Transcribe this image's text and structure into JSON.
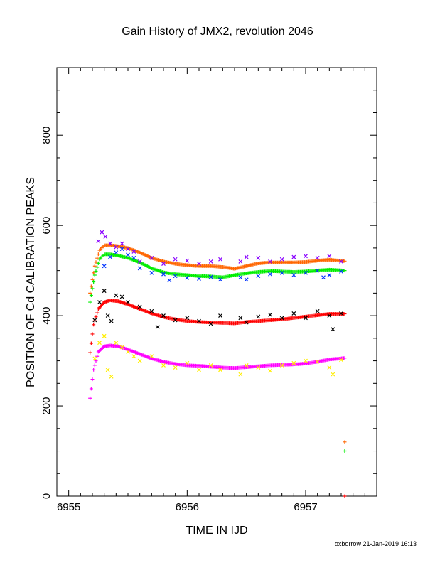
{
  "chart_data": {
    "type": "scatter",
    "title": "Gain History of JMX2, revolution 2046",
    "xlabel": "TIME IN IJD",
    "ylabel": "POSITION OF Cd CALIBRATION PEAKS",
    "xlim": [
      6954.9,
      6957.6
    ],
    "ylim": [
      0,
      950
    ],
    "x_ticks": [
      6955,
      6956,
      6957
    ],
    "y_ticks": [
      0,
      200,
      400,
      600,
      800
    ],
    "grid": false,
    "series": [
      {
        "color": "#ff6600",
        "marker": "plus",
        "role": "smooth",
        "x": [
          6955.18,
          6955.22,
          6955.26,
          6955.3,
          6955.35,
          6955.42,
          6955.5,
          6955.6,
          6955.7,
          6955.8,
          6955.9,
          6956.0,
          6956.1,
          6956.2,
          6956.3,
          6956.4,
          6956.5,
          6956.6,
          6956.7,
          6956.8,
          6956.9,
          6957.0,
          6957.1,
          6957.2,
          6957.33
        ],
        "y": [
          450,
          510,
          545,
          556,
          556,
          554,
          550,
          540,
          528,
          520,
          515,
          512,
          510,
          510,
          508,
          504,
          510,
          516,
          518,
          518,
          518,
          519,
          522,
          524,
          521
        ]
      },
      {
        "color": "#00ee00",
        "marker": "plus",
        "role": "smooth",
        "x": [
          6955.18,
          6955.22,
          6955.26,
          6955.3,
          6955.35,
          6955.42,
          6955.5,
          6955.6,
          6955.7,
          6955.8,
          6955.9,
          6956.0,
          6956.1,
          6956.2,
          6956.3,
          6956.4,
          6956.5,
          6956.6,
          6956.7,
          6956.8,
          6956.9,
          6957.0,
          6957.1,
          6957.2,
          6957.33
        ],
        "y": [
          430,
          490,
          525,
          536,
          536,
          533,
          528,
          518,
          505,
          496,
          492,
          490,
          488,
          487,
          485,
          490,
          494,
          497,
          499,
          498,
          497,
          498,
          500,
          502,
          500
        ]
      },
      {
        "color": "#ff0000",
        "marker": "plus",
        "role": "smooth",
        "x": [
          6955.18,
          6955.21,
          6955.25,
          6955.3,
          6955.35,
          6955.42,
          6955.5,
          6955.6,
          6955.7,
          6955.8,
          6955.9,
          6956.0,
          6956.1,
          6956.2,
          6956.3,
          6956.4,
          6956.5,
          6956.6,
          6956.7,
          6956.8,
          6956.9,
          6957.0,
          6957.1,
          6957.2,
          6957.33
        ],
        "y": [
          318,
          380,
          415,
          430,
          434,
          432,
          425,
          415,
          405,
          397,
          392,
          388,
          386,
          385,
          384,
          383,
          386,
          388,
          390,
          392,
          395,
          398,
          401,
          404,
          404
        ]
      },
      {
        "color": "#ff00ff",
        "marker": "plus",
        "role": "smooth",
        "x": [
          6955.18,
          6955.21,
          6955.25,
          6955.3,
          6955.35,
          6955.42,
          6955.5,
          6955.6,
          6955.7,
          6955.8,
          6955.9,
          6956.0,
          6956.1,
          6956.2,
          6956.3,
          6956.4,
          6956.5,
          6956.6,
          6956.7,
          6956.8,
          6956.9,
          6957.0,
          6957.1,
          6957.2,
          6957.33
        ],
        "y": [
          217,
          280,
          320,
          332,
          334,
          332,
          325,
          315,
          305,
          298,
          293,
          290,
          289,
          287,
          285,
          284,
          286,
          288,
          290,
          291,
          292,
          294,
          298,
          303,
          306
        ]
      },
      {
        "color": "#8800ff",
        "marker": "cross",
        "role": "raw",
        "x": [
          6955.25,
          6955.28,
          6955.31,
          6955.35,
          6955.4,
          6955.45,
          6955.5,
          6955.55,
          6955.6,
          6955.7,
          6955.8,
          6955.9,
          6956.0,
          6956.1,
          6956.2,
          6956.28,
          6956.45,
          6956.5,
          6956.6,
          6956.7,
          6956.8,
          6956.9,
          6957.0,
          6957.1,
          6957.2,
          6957.3
        ],
        "y": [
          565,
          585,
          575,
          560,
          552,
          560,
          548,
          542,
          520,
          528,
          515,
          525,
          522,
          515,
          520,
          525,
          520,
          530,
          528,
          520,
          525,
          530,
          532,
          528,
          532,
          520
        ]
      },
      {
        "color": "#0033ff",
        "marker": "cross",
        "role": "raw",
        "x": [
          6955.3,
          6955.35,
          6955.4,
          6955.45,
          6955.5,
          6955.55,
          6955.6,
          6955.7,
          6955.8,
          6955.85,
          6955.9,
          6956.0,
          6956.1,
          6956.2,
          6956.28,
          6956.45,
          6956.5,
          6956.6,
          6956.7,
          6956.8,
          6956.9,
          6957.0,
          6957.1,
          6957.15,
          6957.2,
          6957.3
        ],
        "y": [
          510,
          530,
          540,
          548,
          535,
          528,
          505,
          495,
          492,
          478,
          488,
          484,
          482,
          486,
          480,
          485,
          480,
          488,
          492,
          495,
          490,
          495,
          500,
          485,
          490,
          498
        ]
      },
      {
        "color": "#000000",
        "marker": "cross",
        "role": "raw",
        "x": [
          6955.22,
          6955.26,
          6955.3,
          6955.33,
          6955.36,
          6955.4,
          6955.45,
          6955.5,
          6955.6,
          6955.7,
          6955.75,
          6955.8,
          6955.9,
          6956.0,
          6956.1,
          6956.2,
          6956.28,
          6956.45,
          6956.5,
          6956.6,
          6956.7,
          6956.8,
          6956.9,
          6957.0,
          6957.1,
          6957.2,
          6957.23,
          6957.3
        ],
        "y": [
          390,
          430,
          455,
          400,
          388,
          445,
          442,
          430,
          420,
          410,
          375,
          400,
          390,
          395,
          388,
          382,
          400,
          395,
          385,
          398,
          402,
          395,
          405,
          395,
          410,
          400,
          370,
          405
        ]
      },
      {
        "color": "#ffee00",
        "marker": "cross",
        "role": "raw",
        "x": [
          6955.22,
          6955.26,
          6955.3,
          6955.33,
          6955.36,
          6955.4,
          6955.45,
          6955.5,
          6955.55,
          6955.6,
          6955.7,
          6955.8,
          6955.9,
          6956.0,
          6956.1,
          6956.2,
          6956.28,
          6956.45,
          6956.5,
          6956.6,
          6956.7,
          6956.8,
          6956.9,
          6957.0,
          6957.1,
          6957.2,
          6957.23,
          6957.3
        ],
        "y": [
          305,
          340,
          355,
          280,
          265,
          340,
          330,
          320,
          310,
          300,
          310,
          290,
          285,
          295,
          280,
          290,
          280,
          270,
          290,
          285,
          278,
          290,
          295,
          300,
          298,
          285,
          270,
          302
        ]
      },
      {
        "color": "#ff6600",
        "marker": "plus",
        "role": "outlier",
        "x": [
          6957.33
        ],
        "y": [
          120
        ]
      },
      {
        "color": "#00ee00",
        "marker": "plus",
        "role": "outlier",
        "x": [
          6957.33
        ],
        "y": [
          100
        ]
      },
      {
        "color": "#ff0000",
        "marker": "plus",
        "role": "outlier",
        "x": [
          6957.33
        ],
        "y": [
          0
        ]
      }
    ],
    "footer": "oxborrow 21-Jan-2019 16:13"
  }
}
